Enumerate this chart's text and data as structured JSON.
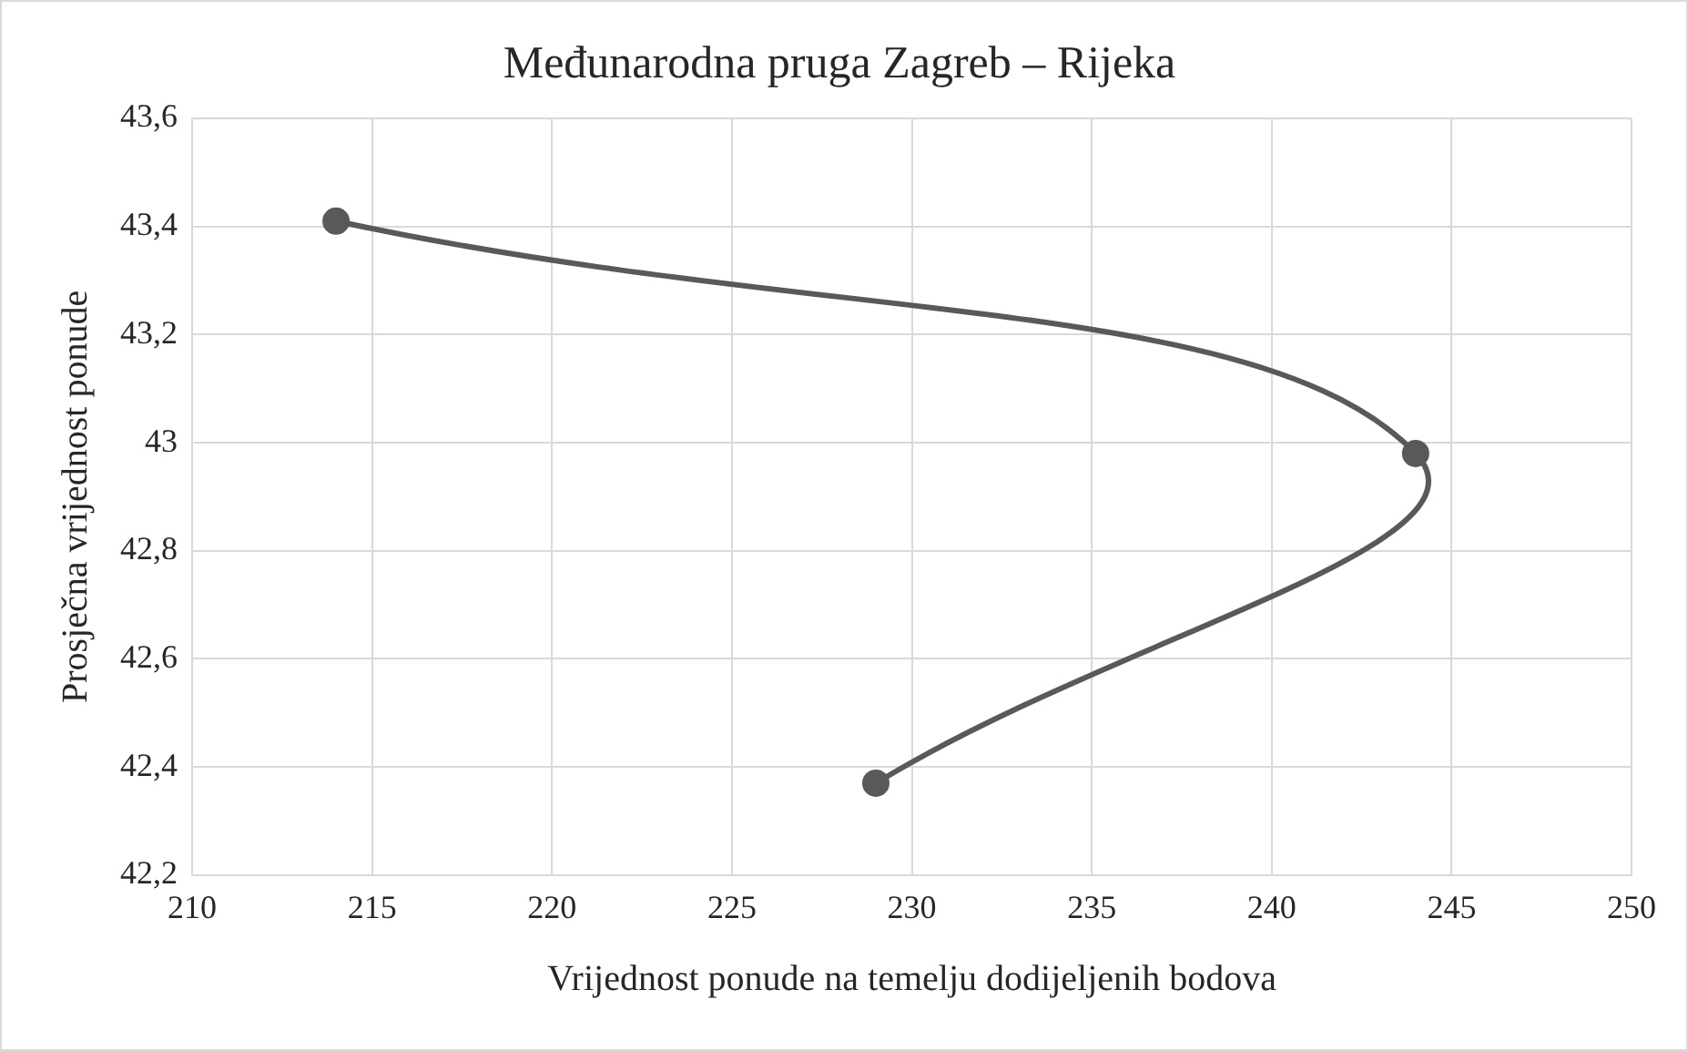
{
  "chart_data": {
    "type": "line",
    "title": "Međunarodna pruga Zagreb – Rijeka",
    "xlabel": "Vrijednost ponude na temelju dodijeljenih bodova",
    "ylabel": "Prosječna vrijednost ponude",
    "x": [
      214,
      244,
      229
    ],
    "series": [
      {
        "color": "#595959",
        "values": [
          43.41,
          42.98,
          42.37
        ]
      }
    ],
    "xlim": [
      210,
      250
    ],
    "xticks": [
      210,
      215,
      220,
      225,
      230,
      235,
      240,
      245,
      250
    ],
    "ylim": [
      42.2,
      43.6
    ],
    "yticks": [
      {
        "value": 42.2,
        "label": "42,2"
      },
      {
        "value": 42.4,
        "label": "42,4"
      },
      {
        "value": 42.6,
        "label": "42,6"
      },
      {
        "value": 42.8,
        "label": "42,8"
      },
      {
        "value": 43,
        "label": "43"
      },
      {
        "value": 43.2,
        "label": "43,2"
      },
      {
        "value": 43.4,
        "label": "43,4"
      },
      {
        "value": 43.6,
        "label": "43,6"
      }
    ],
    "grid": true,
    "legend": false,
    "marker": "circle",
    "line_style": "solid"
  }
}
